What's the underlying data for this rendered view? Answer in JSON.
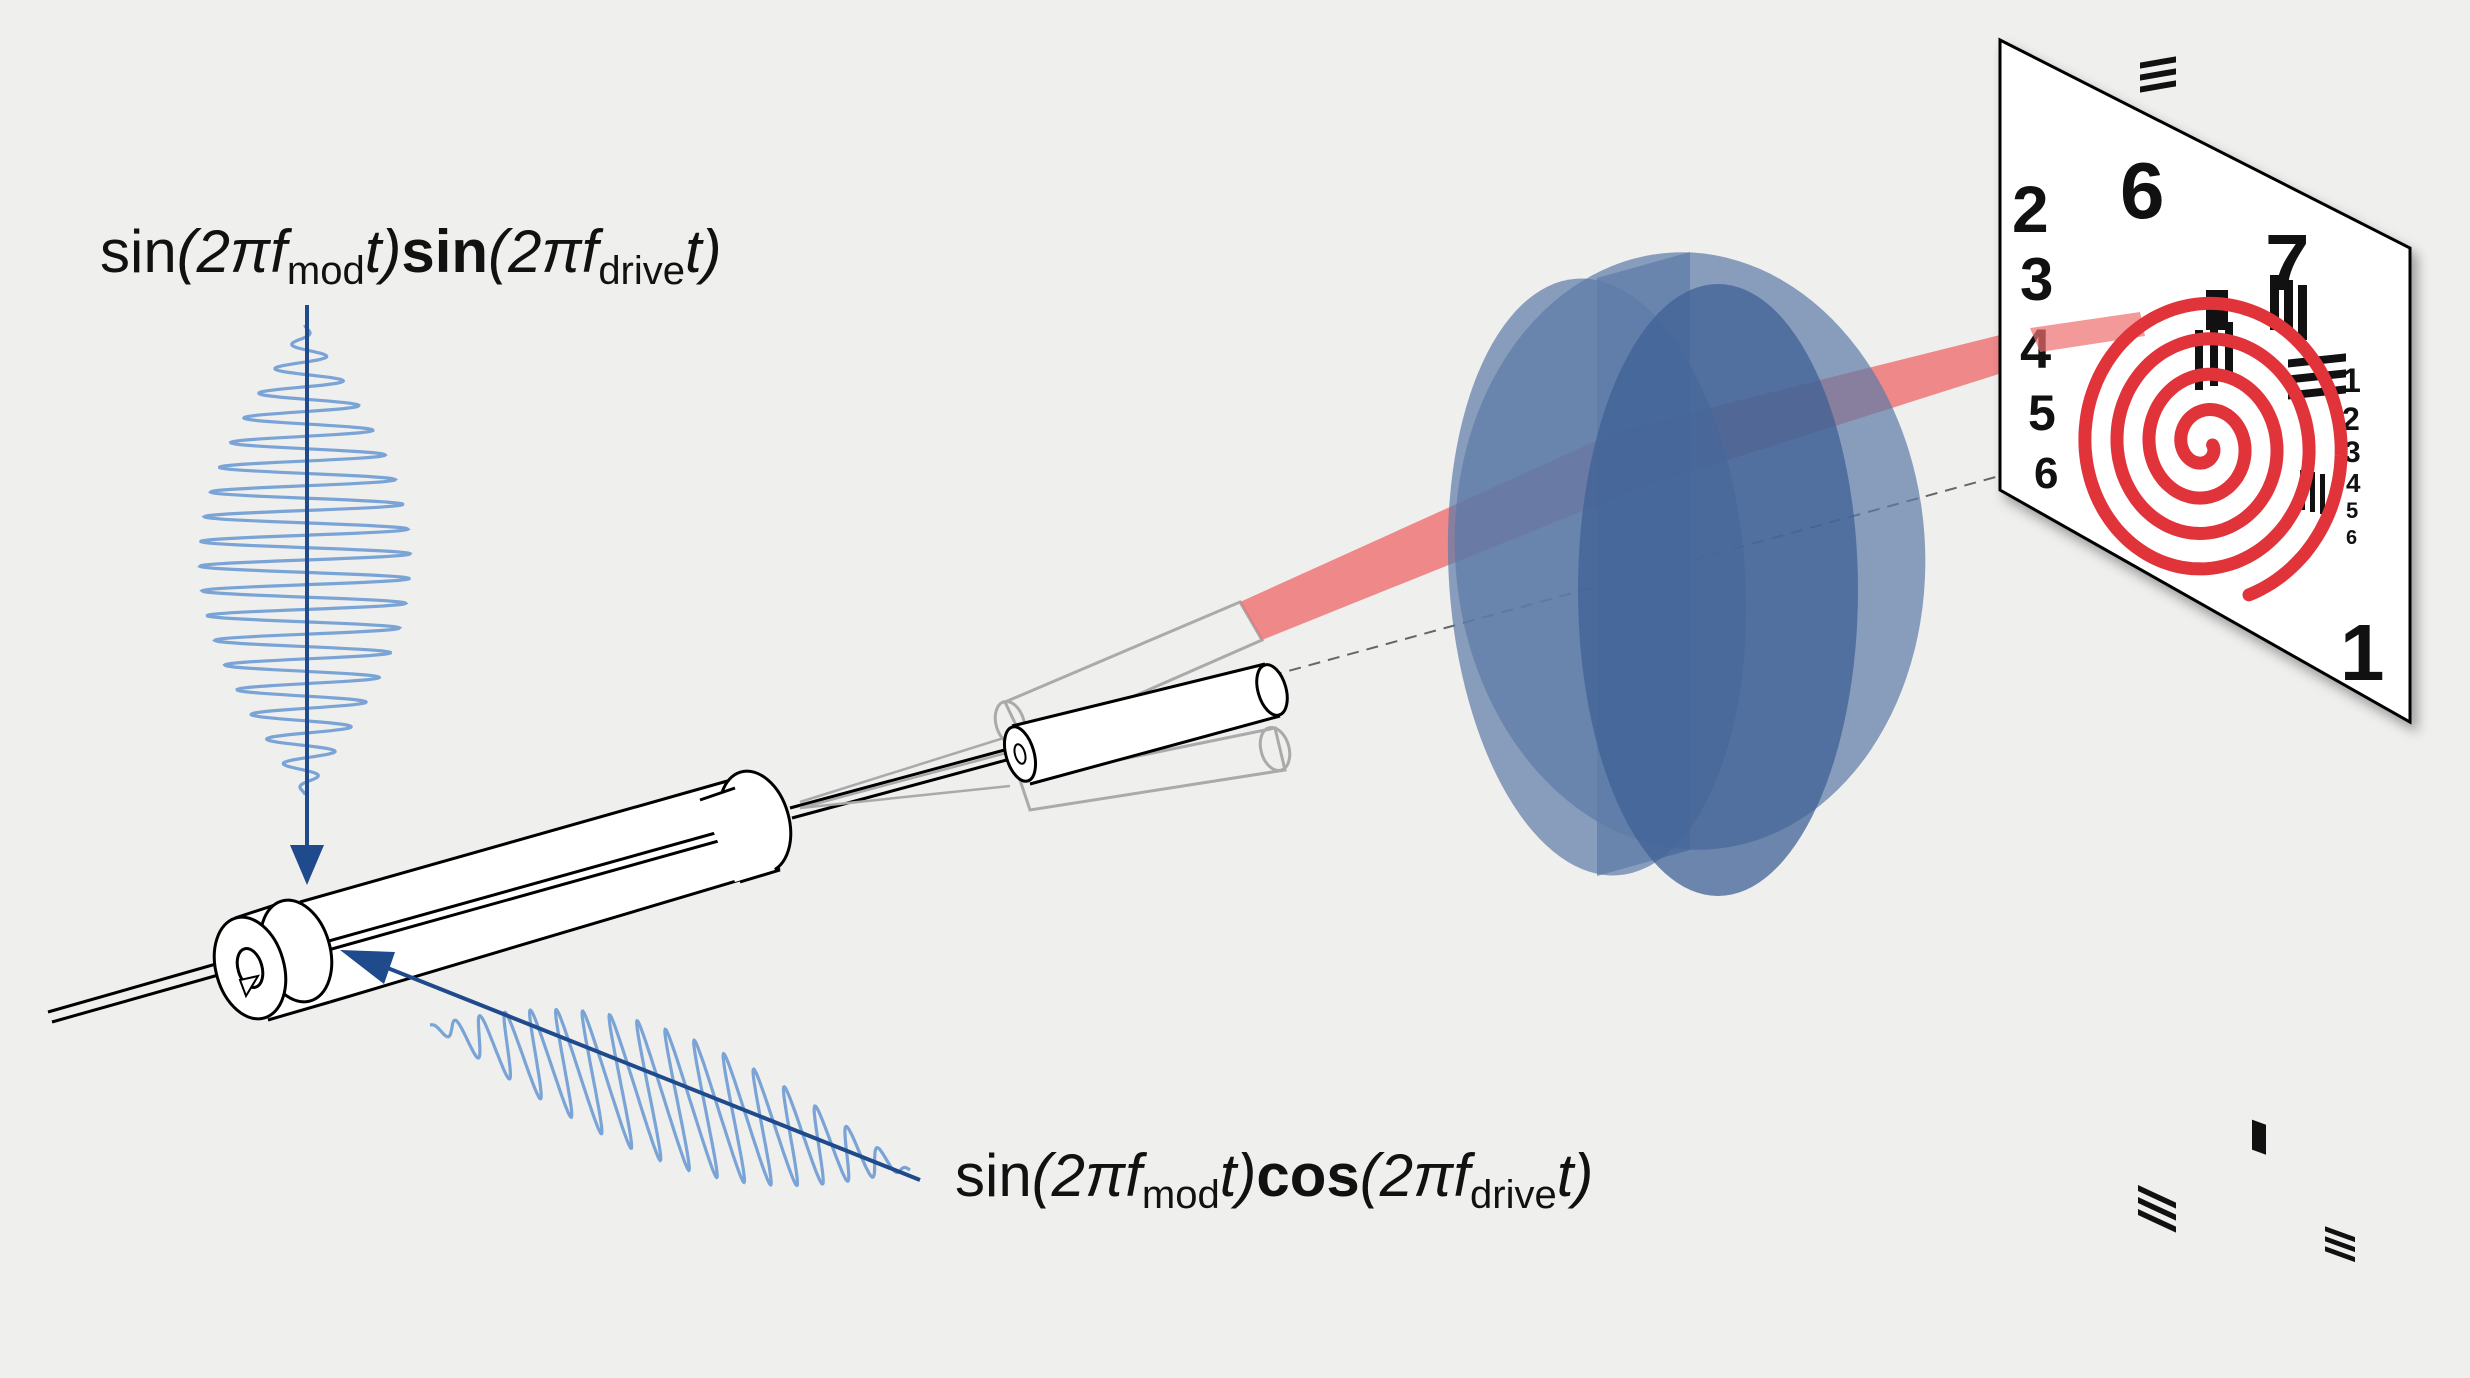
{
  "equations": {
    "sin_drive": {
      "p1": "sin",
      "p2": "(2π",
      "p3": "f",
      "p4": "mod",
      "p5": "t)",
      "p6": "sin",
      "p7": "(2π",
      "p8": "f",
      "p9": "drive",
      "p10": "t)"
    },
    "cos_drive": {
      "p1": "sin",
      "p2": "(2π",
      "p3": "f",
      "p4": "mod",
      "p5": "t)",
      "p6": "cos",
      "p7": "(2π",
      "p8": "f",
      "p9": "drive",
      "p10": "t)"
    }
  },
  "target": {
    "group_labels": [
      "6",
      "7",
      "1",
      "2",
      "3",
      "4",
      "5",
      "6"
    ],
    "element_labels": [
      "1",
      "2",
      "3",
      "4",
      "5",
      "6"
    ]
  },
  "colors": {
    "background": "#efefee",
    "lens": "#5d7aa6",
    "beam": "#ef6e6e",
    "spiral": "#e0333a",
    "waveform": "#7aa3d6",
    "arrow": "#1f4a8c"
  },
  "icons": [
    "fiber-scanner-tube-icon",
    "objective-lens-icon",
    "resolution-target-icon",
    "spiral-scan-icon"
  ]
}
